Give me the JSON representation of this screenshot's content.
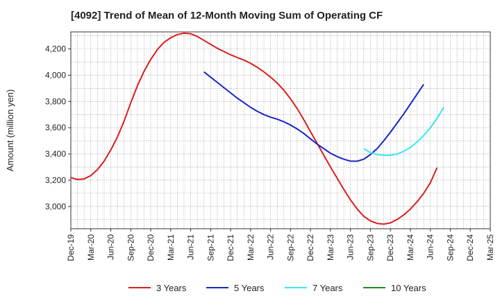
{
  "chart_data": {
    "type": "line",
    "title": "[4092]  Trend of Mean of 12-Month Moving Sum of Operating CF",
    "xlabel": "",
    "ylabel": "Amount (million yen)",
    "ylim": [
      2830,
      4330
    ],
    "yticks": [
      3000,
      3200,
      3400,
      3600,
      3800,
      4000,
      4200
    ],
    "ytick_labels": [
      "3,000",
      "3,200",
      "3,400",
      "3,600",
      "3,800",
      "4,000",
      "4,200"
    ],
    "categories": [
      "Dec-19",
      "Mar-20",
      "Jun-20",
      "Sep-20",
      "Dec-20",
      "Mar-21",
      "Jun-21",
      "Sep-21",
      "Dec-21",
      "Mar-22",
      "Jun-22",
      "Sep-22",
      "Dec-22",
      "Mar-23",
      "Jun-23",
      "Sep-23",
      "Dec-23",
      "Mar-24",
      "Jun-24",
      "Sep-24",
      "Dec-24",
      "Mar-25"
    ],
    "x_unit": "months since Dec-19",
    "grid": true,
    "legend_position": "bottom",
    "series": [
      {
        "name": "3 Years",
        "color": "#dd1c1c",
        "x": [
          0,
          1,
          2,
          3,
          4,
          5,
          6,
          7,
          8,
          9,
          10,
          11,
          12,
          13,
          14,
          15,
          16,
          17,
          18,
          19,
          20,
          21,
          22,
          23,
          24,
          25,
          26,
          27,
          28,
          29,
          30,
          31,
          32,
          33,
          34,
          35,
          36,
          37,
          38,
          39,
          40,
          41,
          42,
          43,
          44,
          45,
          46,
          47,
          48,
          49,
          50,
          51,
          52,
          53,
          54,
          55,
          56,
          57
        ],
        "values": [
          3220,
          3205,
          3210,
          3235,
          3280,
          3345,
          3430,
          3530,
          3650,
          3790,
          3920,
          4030,
          4120,
          4195,
          4250,
          4285,
          4310,
          4320,
          4315,
          4295,
          4265,
          4235,
          4205,
          4180,
          4155,
          4135,
          4115,
          4090,
          4060,
          4025,
          3985,
          3940,
          3885,
          3820,
          3745,
          3660,
          3570,
          3480,
          3390,
          3300,
          3215,
          3130,
          3050,
          2980,
          2925,
          2890,
          2870,
          2865,
          2875,
          2900,
          2935,
          2980,
          3035,
          3100,
          3180,
          3295,
          null,
          null
        ]
      },
      {
        "name": "5 Years",
        "color": "#1424c8",
        "x": [
          20,
          21,
          22,
          23,
          24,
          25,
          26,
          27,
          28,
          29,
          30,
          31,
          32,
          33,
          34,
          35,
          36,
          37,
          38,
          39,
          40,
          41,
          42,
          43,
          44,
          45,
          46,
          47,
          48,
          49,
          50,
          51,
          52,
          53,
          54,
          55,
          56,
          57
        ],
        "values": [
          4025,
          3985,
          3945,
          3905,
          3865,
          3825,
          3790,
          3755,
          3725,
          3700,
          3680,
          3665,
          3645,
          3620,
          3590,
          3555,
          3515,
          3475,
          3440,
          3405,
          3380,
          3360,
          3345,
          3345,
          3360,
          3395,
          3440,
          3500,
          3565,
          3635,
          3705,
          3780,
          3855,
          3930,
          null,
          null,
          null,
          null
        ]
      },
      {
        "name": "7 Years",
        "color": "#33e8f0",
        "x": [
          44,
          45,
          46,
          47,
          48,
          49,
          50,
          51,
          52,
          53,
          54,
          55,
          56,
          57
        ],
        "values": [
          3440,
          3410,
          3395,
          3390,
          3390,
          3400,
          3420,
          3450,
          3490,
          3540,
          3600,
          3670,
          3755,
          null
        ]
      },
      {
        "name": "10 Years",
        "color": "#1f8a1f",
        "x": [],
        "values": []
      }
    ]
  }
}
